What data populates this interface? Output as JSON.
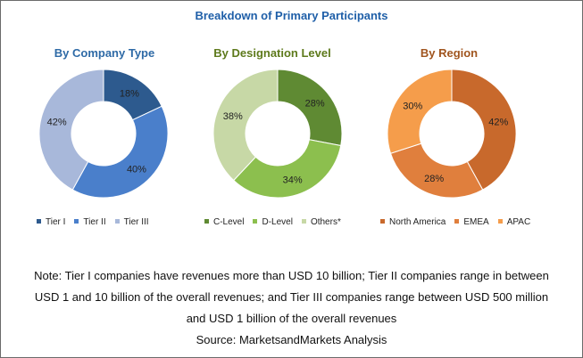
{
  "title": "Breakdown of Primary Participants",
  "colors": {
    "title": "#1f5fa8",
    "company_title": "#2e6aa6",
    "designation_title": "#5e7a1c",
    "region_title": "#a0551f"
  },
  "chart_data": [
    {
      "type": "pie",
      "title": "By Company Type",
      "categories": [
        "Tier I",
        "Tier II",
        "Tier III"
      ],
      "values": [
        18,
        40,
        42
      ],
      "labels": [
        "18%",
        "40%",
        "42%"
      ],
      "colors": [
        "#2d5a8e",
        "#4a7fcb",
        "#a8b8da"
      ]
    },
    {
      "type": "pie",
      "title": "By Designation Level",
      "categories": [
        "C-Level",
        "D-Level",
        "Others*"
      ],
      "values": [
        28,
        34,
        38
      ],
      "labels": [
        "28%",
        "34%",
        "38%"
      ],
      "colors": [
        "#5f8a33",
        "#8cbf4e",
        "#c7d8a6"
      ]
    },
    {
      "type": "pie",
      "title": "By Region",
      "categories": [
        "North America",
        "EMEA",
        "APAC"
      ],
      "values": [
        42,
        28,
        30
      ],
      "labels": [
        "42%",
        "28%",
        "30%"
      ],
      "colors": [
        "#c8692c",
        "#e07f3d",
        "#f59d4b"
      ]
    }
  ],
  "note": {
    "line1": "Note: Tier I companies have revenues more than USD 10 billion; Tier II companies range in between",
    "line2": "USD 1 and 10 billion of the overall revenues; and Tier III companies range between USD 500 million",
    "line3": "and USD 1 billion of the overall revenues",
    "source": "Source: MarketsandMarkets Analysis"
  }
}
